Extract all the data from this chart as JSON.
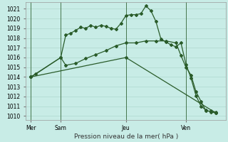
{
  "title": "Pression niveau de la mer( hPa )",
  "bg_color": "#c8ece6",
  "line_color": "#2a5c2a",
  "grid_color": "#a8d4c8",
  "ylim": [
    1009.6,
    1021.7
  ],
  "yticks": [
    1010,
    1011,
    1012,
    1013,
    1014,
    1015,
    1016,
    1017,
    1018,
    1019,
    1020,
    1021
  ],
  "xlim": [
    0,
    20
  ],
  "day_labels": [
    "Mer",
    "Sam",
    "Jeu",
    "Ven"
  ],
  "day_positions": [
    0.5,
    3.5,
    10,
    16
  ],
  "vline_positions": [
    0.5,
    3.5,
    10,
    16
  ],
  "series1_x": [
    0.5,
    3.5,
    4.0,
    4.5,
    5.0,
    5.5,
    6.0,
    6.5,
    7.0,
    7.5,
    8.0,
    8.5,
    9.0,
    9.5,
    10.0,
    10.5,
    11.0,
    11.5,
    12.0,
    12.5,
    13.0,
    13.5,
    14.0,
    14.5,
    15.0,
    15.5,
    16.0,
    16.5,
    17.0,
    17.5,
    18.0,
    18.5,
    19.0
  ],
  "series1_y": [
    1014.0,
    1016.0,
    1018.3,
    1018.5,
    1018.8,
    1019.1,
    1019.0,
    1019.3,
    1019.1,
    1019.3,
    1019.2,
    1019.0,
    1018.9,
    1019.5,
    1020.3,
    1020.4,
    1020.4,
    1020.5,
    1021.3,
    1020.8,
    1019.7,
    1017.9,
    1017.6,
    1017.3,
    1017.1,
    1017.5,
    1015.3,
    1013.9,
    1012.1,
    1011.0,
    1010.6,
    1010.4,
    1010.3
  ],
  "series2_x": [
    0.5,
    1.0,
    3.5,
    4.0,
    5.0,
    6.0,
    7.0,
    8.0,
    9.0,
    10.0,
    11.0,
    12.0,
    13.0,
    14.0,
    15.0,
    15.5,
    16.0,
    16.5,
    17.0,
    17.5,
    18.0,
    18.5,
    19.0
  ],
  "series2_y": [
    1014.0,
    1014.3,
    1016.0,
    1015.2,
    1015.4,
    1015.9,
    1016.3,
    1016.7,
    1017.2,
    1017.5,
    1017.5,
    1017.7,
    1017.7,
    1017.7,
    1017.5,
    1016.2,
    1015.0,
    1014.2,
    1012.5,
    1011.5,
    1010.5,
    1010.5,
    1010.4
  ],
  "series3_x": [
    0.5,
    10.0,
    19.0
  ],
  "series3_y": [
    1014.0,
    1016.0,
    1010.3
  ]
}
